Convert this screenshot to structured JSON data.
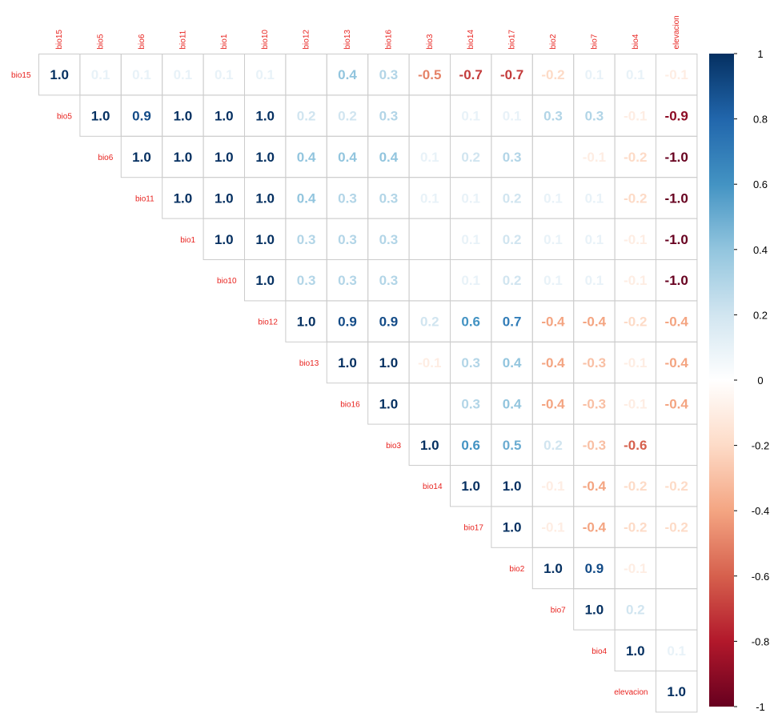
{
  "chart_data": {
    "type": "heatmap",
    "variables": [
      "bio15",
      "bio5",
      "bio6",
      "bio11",
      "bio1",
      "bio10",
      "bio12",
      "bio13",
      "bio16",
      "bio3",
      "bio14",
      "bio17",
      "bio2",
      "bio7",
      "bio4",
      "elevacion"
    ],
    "rows": [
      {
        "label": "bio15",
        "values": [
          1.0,
          0.1,
          0.1,
          0.1,
          0.1,
          0.1,
          0.0,
          0.4,
          0.3,
          -0.5,
          -0.7,
          -0.7,
          -0.2,
          0.1,
          0.1,
          -0.1
        ],
        "text": [
          "1.0",
          "0.1",
          "0.1",
          "0.1",
          "0.1",
          "0.1",
          "0.0",
          "0.4",
          "0.3",
          "-0.5",
          "-0.7",
          "-0.7",
          "-0.2",
          "0.1",
          "0.1",
          "-0.1"
        ]
      },
      {
        "label": "bio5",
        "values": [
          null,
          1.0,
          0.9,
          1.0,
          1.0,
          1.0,
          0.2,
          0.2,
          0.3,
          0.0,
          0.1,
          0.1,
          0.3,
          0.3,
          -0.1,
          -0.9
        ],
        "text": [
          null,
          "1.0",
          "0.9",
          "1.0",
          "1.0",
          "1.0",
          "0.2",
          "0.2",
          "0.3",
          "",
          "0.1",
          "0.1",
          "0.3",
          "0.3",
          "-0.1",
          "-0.9"
        ]
      },
      {
        "label": "bio6",
        "values": [
          null,
          null,
          1.0,
          1.0,
          1.0,
          1.0,
          0.4,
          0.4,
          0.4,
          0.1,
          0.2,
          0.3,
          0.0,
          -0.1,
          -0.2,
          -1.0
        ],
        "text": [
          null,
          null,
          "1.0",
          "1.0",
          "1.0",
          "1.0",
          "0.4",
          "0.4",
          "0.4",
          "0.1",
          "0.2",
          "0.3",
          "0.0",
          "-0.1",
          "-0.2",
          "-1.0"
        ]
      },
      {
        "label": "bio11",
        "values": [
          null,
          null,
          null,
          1.0,
          1.0,
          1.0,
          0.4,
          0.3,
          0.3,
          0.1,
          0.1,
          0.2,
          0.1,
          0.1,
          -0.2,
          -1.0
        ],
        "text": [
          null,
          null,
          null,
          "1.0",
          "1.0",
          "1.0",
          "0.4",
          "0.3",
          "0.3",
          "0.1",
          "0.1",
          "0.2",
          "0.1",
          "0.1",
          "-0.2",
          "-1.0"
        ]
      },
      {
        "label": "bio1",
        "values": [
          null,
          null,
          null,
          null,
          1.0,
          1.0,
          0.3,
          0.3,
          0.3,
          0.0,
          0.1,
          0.2,
          0.1,
          0.1,
          -0.1,
          -1.0
        ],
        "text": [
          null,
          null,
          null,
          null,
          "1.0",
          "1.0",
          "0.3",
          "0.3",
          "0.3",
          "0.0",
          "0.1",
          "0.2",
          "0.1",
          "0.1",
          "-0.1",
          "-1.0"
        ]
      },
      {
        "label": "bio10",
        "values": [
          null,
          null,
          null,
          null,
          null,
          1.0,
          0.3,
          0.3,
          0.3,
          0.0,
          0.1,
          0.2,
          0.1,
          0.1,
          -0.1,
          -1.0
        ],
        "text": [
          null,
          null,
          null,
          null,
          null,
          "1.0",
          "0.3",
          "0.3",
          "0.3",
          "0.0",
          "0.1",
          "0.2",
          "0.1",
          "0.1",
          "-0.1",
          "-1.0"
        ]
      },
      {
        "label": "bio12",
        "values": [
          null,
          null,
          null,
          null,
          null,
          null,
          1.0,
          0.9,
          0.9,
          0.2,
          0.6,
          0.7,
          -0.4,
          -0.4,
          -0.2,
          -0.4
        ],
        "text": [
          null,
          null,
          null,
          null,
          null,
          null,
          "1.0",
          "0.9",
          "0.9",
          "0.2",
          "0.6",
          "0.7",
          "-0.4",
          "-0.4",
          "-0.2",
          "-0.4"
        ]
      },
      {
        "label": "bio13",
        "values": [
          null,
          null,
          null,
          null,
          null,
          null,
          null,
          1.0,
          1.0,
          -0.1,
          0.3,
          0.4,
          -0.4,
          -0.3,
          -0.1,
          -0.4
        ],
        "text": [
          null,
          null,
          null,
          null,
          null,
          null,
          null,
          "1.0",
          "1.0",
          "-0.1",
          "0.3",
          "0.4",
          "-0.4",
          "-0.3",
          "-0.1",
          "-0.4"
        ]
      },
      {
        "label": "bio16",
        "values": [
          null,
          null,
          null,
          null,
          null,
          null,
          null,
          null,
          1.0,
          0.0,
          0.3,
          0.4,
          -0.4,
          -0.3,
          -0.1,
          -0.4
        ],
        "text": [
          null,
          null,
          null,
          null,
          null,
          null,
          null,
          null,
          "1.0",
          "0.0",
          "0.3",
          "0.4",
          "-0.4",
          "-0.3",
          "-0.1",
          "-0.4"
        ]
      },
      {
        "label": "bio3",
        "values": [
          null,
          null,
          null,
          null,
          null,
          null,
          null,
          null,
          null,
          1.0,
          0.6,
          0.5,
          0.2,
          -0.3,
          -0.6,
          0.0
        ],
        "text": [
          null,
          null,
          null,
          null,
          null,
          null,
          null,
          null,
          null,
          "1.0",
          "0.6",
          "0.5",
          "0.2",
          "-0.3",
          "-0.6",
          "0.0"
        ]
      },
      {
        "label": "bio14",
        "values": [
          null,
          null,
          null,
          null,
          null,
          null,
          null,
          null,
          null,
          null,
          1.0,
          1.0,
          -0.1,
          -0.4,
          -0.2,
          -0.2
        ],
        "text": [
          null,
          null,
          null,
          null,
          null,
          null,
          null,
          null,
          null,
          null,
          "1.0",
          "1.0",
          "-0.1",
          "-0.4",
          "-0.2",
          "-0.2"
        ]
      },
      {
        "label": "bio17",
        "values": [
          null,
          null,
          null,
          null,
          null,
          null,
          null,
          null,
          null,
          null,
          null,
          1.0,
          -0.1,
          -0.4,
          -0.2,
          -0.2
        ],
        "text": [
          null,
          null,
          null,
          null,
          null,
          null,
          null,
          null,
          null,
          null,
          null,
          "1.0",
          "-0.1",
          "-0.4",
          "-0.2",
          "-0.2"
        ]
      },
      {
        "label": "bio2",
        "values": [
          null,
          null,
          null,
          null,
          null,
          null,
          null,
          null,
          null,
          null,
          null,
          null,
          1.0,
          0.9,
          -0.1,
          0.0
        ],
        "text": [
          null,
          null,
          null,
          null,
          null,
          null,
          null,
          null,
          null,
          null,
          null,
          null,
          "1.0",
          "0.9",
          "-0.1",
          "0.0"
        ]
      },
      {
        "label": "bio7",
        "values": [
          null,
          null,
          null,
          null,
          null,
          null,
          null,
          null,
          null,
          null,
          null,
          null,
          null,
          1.0,
          0.2,
          0.0
        ],
        "text": [
          null,
          null,
          null,
          null,
          null,
          null,
          null,
          null,
          null,
          null,
          null,
          null,
          null,
          "1.0",
          "0.2",
          "0.0"
        ]
      },
      {
        "label": "bio4",
        "values": [
          null,
          null,
          null,
          null,
          null,
          null,
          null,
          null,
          null,
          null,
          null,
          null,
          null,
          null,
          1.0,
          0.1
        ],
        "text": [
          null,
          null,
          null,
          null,
          null,
          null,
          null,
          null,
          null,
          null,
          null,
          null,
          null,
          null,
          "1.0",
          "0.1"
        ]
      },
      {
        "label": "elevacion",
        "values": [
          null,
          null,
          null,
          null,
          null,
          null,
          null,
          null,
          null,
          null,
          null,
          null,
          null,
          null,
          null,
          1.0
        ],
        "text": [
          null,
          null,
          null,
          null,
          null,
          null,
          null,
          null,
          null,
          null,
          null,
          null,
          null,
          null,
          null,
          "1.0"
        ]
      }
    ],
    "colorbar": {
      "range": [
        -1,
        1
      ],
      "ticks": [
        "1",
        "0.8",
        "0.6",
        "0.4",
        "0.2",
        "0",
        "-0.2",
        "-0.4",
        "-0.6",
        "-0.8",
        "-1"
      ],
      "tick_values": [
        1,
        0.8,
        0.6,
        0.4,
        0.2,
        0,
        -0.2,
        -0.4,
        -0.6,
        -0.8,
        -1
      ],
      "colors_neg_to_pos": [
        "#67001F",
        "#B2182B",
        "#D6604D",
        "#F4A582",
        "#FDDBC7",
        "#FFFFFF",
        "#D1E5F0",
        "#92C5DE",
        "#4393C3",
        "#2166AC",
        "#053061"
      ]
    },
    "label_color": "#E8231F",
    "title": "",
    "xlabel": "",
    "ylabel": ""
  }
}
